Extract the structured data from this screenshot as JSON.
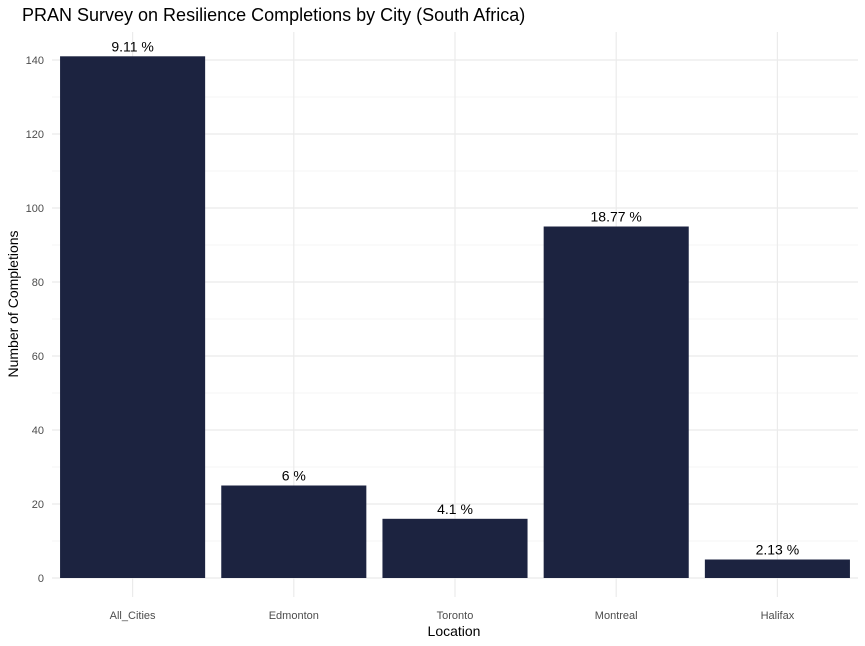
{
  "chart_data": {
    "type": "bar",
    "title": "PRAN Survey on Resilience Completions by City (South Africa)",
    "xlabel": "Location",
    "ylabel": "Number of Completions",
    "categories": [
      "All_Cities",
      "Edmonton",
      "Toronto",
      "Montreal",
      "Halifax"
    ],
    "values": [
      141,
      25,
      16,
      95,
      5
    ],
    "data_labels": [
      "9.11 %",
      "6 %",
      "4.1 %",
      "18.77 %",
      "2.13 %"
    ],
    "ylim": [
      0,
      145
    ],
    "yticks": [
      0,
      20,
      40,
      60,
      80,
      100,
      120,
      140
    ],
    "grid": true,
    "legend": "none",
    "bar_color": "#1c2340",
    "grid_major_color": "#ebebeb",
    "grid_minor_color": "#f5f5f5"
  }
}
